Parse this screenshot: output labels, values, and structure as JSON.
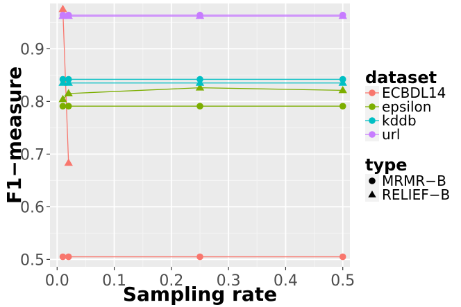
{
  "chart_data": {
    "type": "line",
    "xlabel": "Sampling rate",
    "ylabel": "F1−measure",
    "xlim": [
      -0.0125,
      0.5125
    ],
    "ylim": [
      0.486,
      0.986
    ],
    "xticks": [
      0.0,
      0.1,
      0.2,
      0.3,
      0.4,
      0.5
    ],
    "xtick_labels": [
      "0.0",
      "0.1",
      "0.2",
      "0.3",
      "0.4",
      "0.5"
    ],
    "yticks": [
      0.5,
      0.6,
      0.7,
      0.8,
      0.9
    ],
    "ytick_labels": [
      "0.5",
      "0.6",
      "0.7",
      "0.8",
      "0.9"
    ],
    "grid": true,
    "legend_placement": "right",
    "legend": {
      "dataset": {
        "title": "dataset",
        "entries": [
          {
            "label": "ECBDL14",
            "color": "#F8766D"
          },
          {
            "label": "epsilon",
            "color": "#7CAE00"
          },
          {
            "label": "kddb",
            "color": "#00BFC4"
          },
          {
            "label": "url",
            "color": "#C77CFF"
          }
        ]
      },
      "type": {
        "title": "type",
        "entries": [
          {
            "label": "MRMR−B",
            "shape": "circle"
          },
          {
            "label": "RELIEF−B",
            "shape": "triangle"
          }
        ]
      }
    },
    "series": [
      {
        "dataset": "ECBDL14",
        "type": "MRMR−B",
        "color": "#F8766D",
        "shape": "circle",
        "x": [
          0.01,
          0.02,
          0.25,
          0.5
        ],
        "y": [
          0.505,
          0.505,
          0.505,
          0.505
        ]
      },
      {
        "dataset": "ECBDL14",
        "type": "RELIEF−B",
        "color": "#F8766D",
        "shape": "triangle",
        "x": [
          0.01,
          0.02
        ],
        "y": [
          0.975,
          0.683
        ]
      },
      {
        "dataset": "epsilon",
        "type": "MRMR−B",
        "color": "#7CAE00",
        "shape": "circle",
        "x": [
          0.01,
          0.02,
          0.25,
          0.5
        ],
        "y": [
          0.791,
          0.791,
          0.791,
          0.791
        ]
      },
      {
        "dataset": "epsilon",
        "type": "RELIEF−B",
        "color": "#7CAE00",
        "shape": "triangle",
        "x": [
          0.01,
          0.02,
          0.25,
          0.5
        ],
        "y": [
          0.804,
          0.815,
          0.826,
          0.821
        ]
      },
      {
        "dataset": "kddb",
        "type": "MRMR−B",
        "color": "#00BFC4",
        "shape": "circle",
        "x": [
          0.01,
          0.02,
          0.25,
          0.5
        ],
        "y": [
          0.842,
          0.842,
          0.842,
          0.842
        ]
      },
      {
        "dataset": "kddb",
        "type": "RELIEF−B",
        "color": "#00BFC4",
        "shape": "triangle",
        "x": [
          0.01,
          0.02,
          0.25,
          0.5
        ],
        "y": [
          0.835,
          0.835,
          0.835,
          0.835
        ]
      },
      {
        "dataset": "url",
        "type": "MRMR−B",
        "color": "#C77CFF",
        "shape": "circle",
        "x": [
          0.01,
          0.02,
          0.25,
          0.5
        ],
        "y": [
          0.964,
          0.964,
          0.964,
          0.964
        ]
      },
      {
        "dataset": "url",
        "type": "RELIEF−B",
        "color": "#C77CFF",
        "shape": "triangle",
        "x": [
          0.01,
          0.02,
          0.25,
          0.5
        ],
        "y": [
          0.962,
          0.962,
          0.962,
          0.962
        ]
      }
    ]
  }
}
